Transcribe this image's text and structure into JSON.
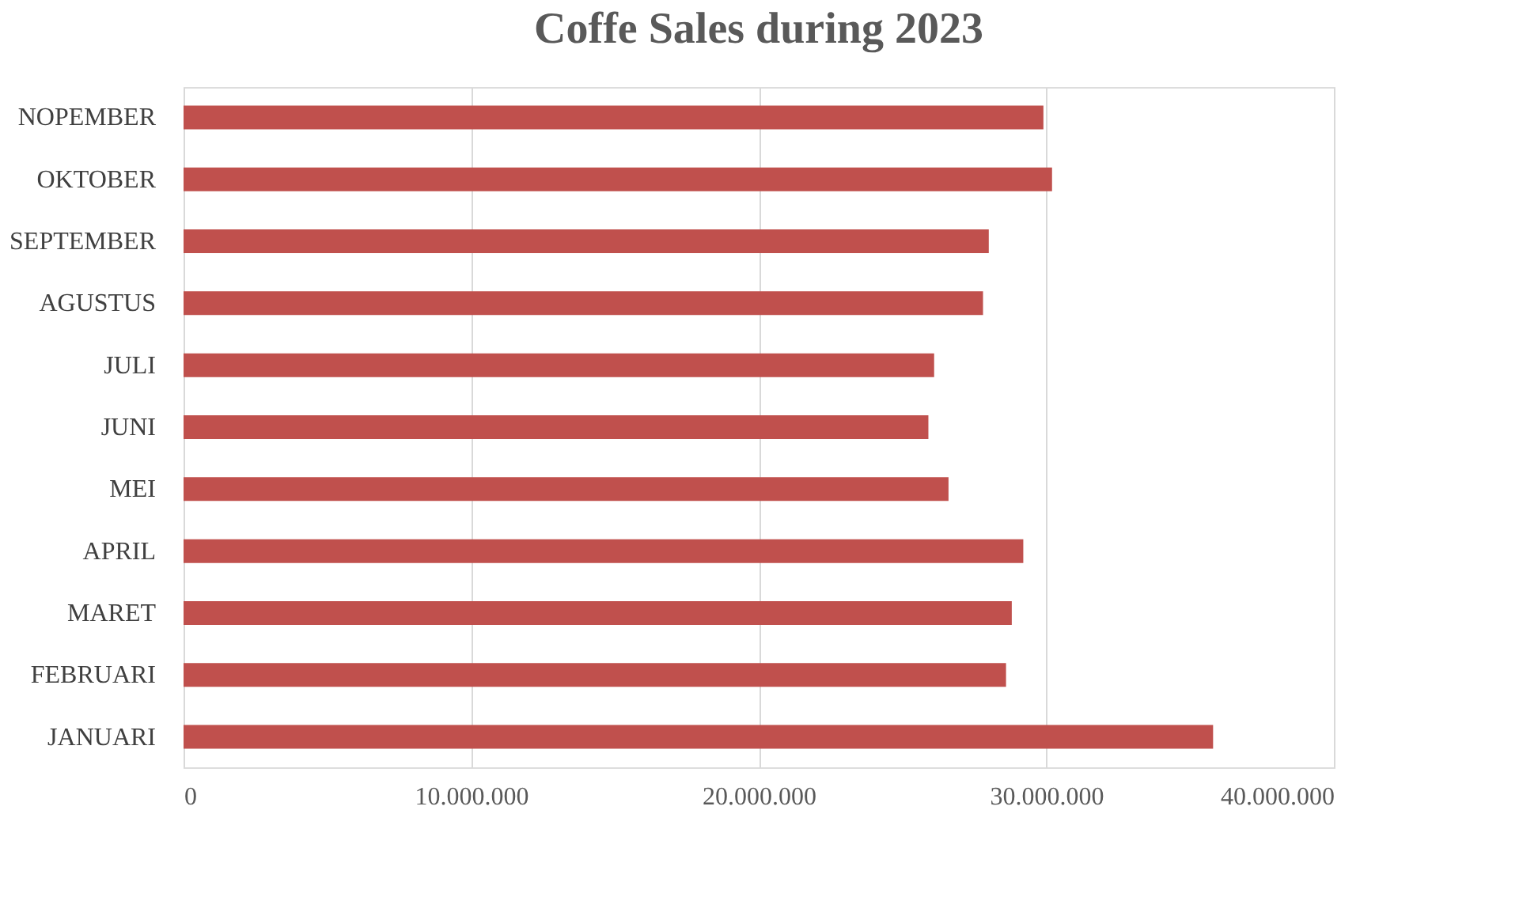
{
  "chart_data": {
    "type": "bar",
    "orientation": "horizontal",
    "title": "Coffe Sales during 2023",
    "categories": [
      "NOPEMBER",
      "OKTOBER",
      "SEPTEMBER",
      "AGUSTUS",
      "JULI",
      "JUNI",
      "MEI",
      "APRIL",
      "MARET",
      "FEBRUARI",
      "JANUARI"
    ],
    "values": [
      29900000,
      30200000,
      28000000,
      27800000,
      26100000,
      25900000,
      26600000,
      29200000,
      28800000,
      28600000,
      35800000
    ],
    "color": "#c0504d",
    "xlim": [
      0,
      40000000
    ],
    "xticks": [
      0,
      {
        "value": 10000000,
        "label": "10.000.000"
      },
      {
        "value": 20000000,
        "label": "20.000.000"
      },
      {
        "value": 30000000,
        "label": "30.000.000"
      },
      {
        "value": 40000000,
        "label": "40.000.000"
      }
    ],
    "grid": "x"
  }
}
